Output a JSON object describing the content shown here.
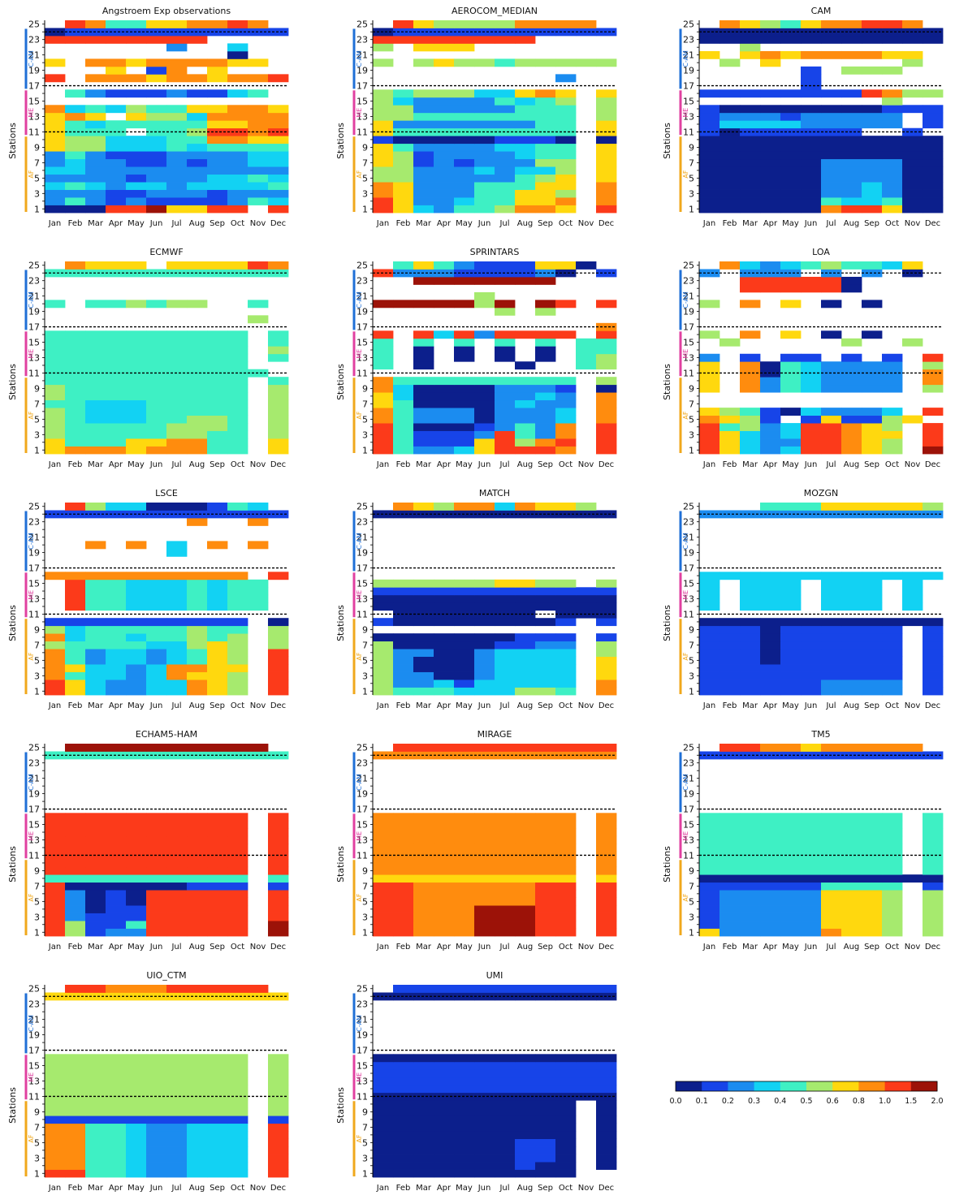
{
  "palette": [
    "#0c1f8c",
    "#1744e8",
    "#1b8cf0",
    "#12d2f3",
    "#3ef0c4",
    "#a6ea6e",
    "#ffd80e",
    "#ff8c0e",
    "#fc3a1a",
    "#9c1208"
  ],
  "months": [
    "Jan",
    "Feb",
    "Mar",
    "Apr",
    "May",
    "Jun",
    "Jul",
    "Aug",
    "Sep",
    "Oct",
    "Nov",
    "Dec"
  ],
  "stations_label": "Stations",
  "region_labels": [
    "C-AM",
    "ME",
    "AF"
  ],
  "region_colors": [
    "#1f6fd6",
    "#e040a0",
    "#f0a81c"
  ],
  "colorbar": {
    "ticks": [
      "0.0",
      "0.1",
      "0.2",
      "0.3",
      "0.4",
      "0.5",
      "0.6",
      "0.8",
      "1.0",
      "1.5",
      "2.0"
    ]
  },
  "chart_data": [
    {
      "type": "heatmap",
      "title": "Angstroem Exp observations",
      "y_ticks": [
        1,
        3,
        5,
        7,
        9,
        11,
        13,
        15,
        17,
        19,
        21,
        23,
        25
      ],
      "x": [
        "Jan",
        "Feb",
        "Mar",
        "Apr",
        "May",
        "Jun",
        "Jul",
        "Aug",
        "Sep",
        "Oct",
        "Nov",
        "Dec"
      ],
      "rows": [
        "0008896688-8",
        "2421211112433",
        "2221122212222",
        "3432332333342",
        "2222122233433",
        "3322222222222",
        "2322112122332",
        "2421112222332",
        "6553334344443",
        "6553334477665",
        "6444-44588788",
        "6434444466777",
        "676-6553777766",
        "7343544667767",
        "-------------",
        "-4211121134-",
        "---------------",
        "8-7776776778",
        "---6-17-6---",
        "6-776777766-7",
        "---------0----",
        "------2--3----",
        "88888888-----",
        "0111111111111",
        "-8744667787-"
      ]
    },
    {
      "type": "heatmap",
      "title": "AEROCOM_MEDIAN",
      "y_ticks": [
        1,
        3,
        5,
        7,
        9,
        11,
        13,
        15,
        17,
        19,
        21,
        23,
        25
      ],
      "x": [
        "Jan",
        "Feb",
        "Mar",
        "Apr",
        "May",
        "Jun",
        "Jul",
        "Aug",
        "Sep",
        "Oct",
        "Nov",
        "Dec"
      ],
      "rows": [
        "8632445776-8",
        "8622344667-7",
        "7622244665-7",
        "7622244466-7",
        "5522222456-6",
        "5522232335-6",
        "6512122255-6",
        "6512222344-6",
        "6422223344-6",
        "1000001110-0",
        "6444444444-6",
        "6222222244-6",
        "5544444444-5",
        "5522222444-5",
        "5322224345-5",
        "5455533676-6",
        "---------------",
        "---------2-----",
        "---------------",
        "5-5655455555",
        "---------------",
        "5-666---------",
        "88888888-----",
        "0111111111111",
        "-8655557777--"
      ]
    },
    {
      "type": "heatmap",
      "title": "CAM",
      "y_ticks": [
        1,
        3,
        5,
        7,
        9,
        11,
        13,
        15,
        17,
        19,
        21,
        23,
        25
      ],
      "x": [
        "Jan",
        "Feb",
        "Mar",
        "Apr",
        "May",
        "Jun",
        "Jul",
        "Aug",
        "Sep",
        "Oct",
        "Nov",
        "Dec"
      ],
      "rows": [
        "000000788600",
        "000000433400",
        "000000223200",
        "000000223200",
        "000000222200",
        "000000222200",
        "000000222200",
        "000000000000",
        "000000000000",
        "000000000000",
        "10111111--1-",
        "1333322222-1",
        "1222122222-1",
        "1000000001112",
        "---------5---",
        "1111111187555",
        "-----1---------",
        "-----1---------",
        "-----1-555----",
        "-5-6------5--",
        "6-676777766-6",
        "--5---------",
        "0000000000000",
        "0000000000000",
        "-7654677887--"
      ]
    },
    {
      "type": "heatmap",
      "title": "ECMWF",
      "y_ticks": [
        1,
        3,
        5,
        7,
        9,
        11,
        13,
        15,
        17,
        19,
        21,
        23,
        25
      ],
      "x": [
        "Jan",
        "Feb",
        "Mar",
        "Apr",
        "May",
        "Jun",
        "Jul",
        "Aug",
        "Sep",
        "Oct",
        "Nov",
        "Dec"
      ],
      "rows": [
        "6777677744-6",
        "6444667744-6",
        "5444445544-5",
        "5444445554-5",
        "5433344554-5",
        "5433344444-5",
        "4433344444-5",
        "5444444444-5",
        "5444444444-5",
        "4444444444-4",
        "44444444444-",
        "4444444444--",
        "4444444444-4",
        "4444444444-5",
        "4444444444-4",
        "4444444444-4",
        "---------------",
        "----------5----",
        "---------------",
        "4-445455--4",
        "-------------",
        "----------------",
        "--------------",
        "444444444444",
        "-7666-6666877"
      ]
    },
    {
      "type": "heatmap",
      "title": "SPRINTARS",
      "y_ticks": [
        1,
        3,
        5,
        7,
        9,
        11,
        13,
        15,
        17,
        19,
        21,
        23,
        25
      ],
      "x": [
        "Jan",
        "Feb",
        "Mar",
        "Apr",
        "May",
        "Jun",
        "Jul",
        "Aug",
        "Sep",
        "Oct",
        "Nov",
        "Dec"
      ],
      "rows": [
        "8422368887-8",
        "8411168578-8",
        "8411128427-8",
        "8400012427-8",
        "7422202223-7",
        "7422202223-7",
        "6400002322-7",
        "6300002232-7",
        "7300002221-0",
        "7444444444-5",
        "----------",
        "4-0----0--45",
        "4-0-0-0-0-45",
        "4-0-0-0-0-44",
        "4-4-4-4-4-44",
        "8-83828888-8",
        "-----------7---",
        "----------------",
        "------5-5------",
        "9999959-98-88",
        "-----5--------",
        "--------------",
        "--9999999-----",
        "8222111120-1",
        "-4642111660-"
      ]
    },
    {
      "type": "heatmap",
      "title": "LOA",
      "y_ticks": [
        1,
        3,
        5,
        7,
        9,
        11,
        13,
        15,
        17,
        19,
        21,
        23,
        25
      ],
      "x": [
        "Jan",
        "Feb",
        "Mar",
        "Apr",
        "May",
        "Jun",
        "Jul",
        "Aug",
        "Sep",
        "Oct",
        "Nov",
        "Dec"
      ],
      "rows": [
        "8632388765-9",
        "8632288765-8",
        "8632388766-8",
        "8452388765-8",
        "7651-161156-7",
        "6541032223-8",
        "-----------",
        "--------------",
        "6-72432222-5",
        "6-72432222-7",
        "6-70432222-7",
        "6-70432222-5",
        "2-1-11-1-1-8",
        "----------",
        "-5-----5--5-",
        "5-7-6-0-0-----",
        "----------------",
        "----------------",
        "---------------",
        "5-7-6-0-0------",
        "--------------",
        "--888880--------",
        "--888880--------",
        "2-222-2-2-0-2",
        "-7323454436-"
      ]
    },
    {
      "type": "heatmap",
      "title": "LSCE",
      "y_ticks": [
        1,
        3,
        5,
        7,
        9,
        11,
        13,
        15,
        17,
        19,
        21,
        23,
        25
      ],
      "x": [
        "Jan",
        "Feb",
        "Mar",
        "Apr",
        "May",
        "Jun",
        "Jul",
        "Aug",
        "Sep",
        "Oct",
        "Nov",
        "Dec"
      ],
      "rows": [
        "8632233765-8",
        "8632233765-8",
        "7433237665-8",
        "7633237766-8",
        "7423323465-8",
        "7423323465-8",
        "5444433565-5",
        "7344344545-5",
        "5344444544-5",
        "1111111111-0",
        "----------",
        "-8443334344-8",
        "-8443334344-8",
        "-8443334344-8",
        "-8443334344-8",
        "7777777777-8",
        "---------------",
        "---------------",
        "------3---------",
        "--7-7-3-7-7-7",
        "----------------",
        "----------------",
        "-------7--7-----",
        "1111111111111",
        "-8533000143-8"
      ]
    },
    {
      "type": "heatmap",
      "title": "MATCH",
      "y_ticks": [
        1,
        3,
        5,
        7,
        9,
        11,
        13,
        15,
        17,
        19,
        21,
        23,
        25
      ],
      "x": [
        "Jan",
        "Feb",
        "Mar",
        "Apr",
        "May",
        "Jun",
        "Jul",
        "Aug",
        "Sep",
        "Oct",
        "Nov",
        "Dec"
      ],
      "rows": [
        "5444333554-7",
        "5223133333-7",
        "5220023333-6",
        "5200023333-6",
        "5200023333-6",
        "5220023333-5",
        "5000001122-5",
        "0000000111-1",
        "----------",
        "1000000001-1",
        "-0000000-000",
        "0000000000000",
        "0000000000000",
        "1111111111111",
        "5555556655-5",
        "-------------",
        "---------------",
        "----------------",
        "---------------",
        "-------------",
        "---------------",
        "---------------",
        "---------------",
        "0000000000000",
        "-7657737665-"
      ]
    },
    {
      "type": "heatmap",
      "title": "MOZGN",
      "y_ticks": [
        1,
        3,
        5,
        7,
        9,
        11,
        13,
        15,
        17,
        19,
        21,
        23,
        25
      ],
      "x": [
        "Jan",
        "Feb",
        "Mar",
        "Apr",
        "May",
        "Jun",
        "Jul",
        "Aug",
        "Sep",
        "Oct",
        "Nov",
        "Dec"
      ],
      "rows": [
        "1111112222-1",
        "1111112222-1",
        "1111111111-1",
        "1111111111-1",
        "1110111111-1",
        "1110111111-1",
        "1110111111-1",
        "1110111111-1",
        "1110111111-1",
        "0000000000000",
        "----------",
        "3-333-333-3-",
        "3-333-333-3-",
        "3-333-333-3-",
        "3-333-333-3-",
        "3333333333333",
        "-------------",
        "----------------",
        "---------------",
        "--------------",
        "---------------",
        "---------------",
        "---------------",
        "2222222222222",
        "---444666665--"
      ]
    },
    {
      "type": "heatmap",
      "title": "ECHAM5-HAM",
      "y_ticks": [
        1,
        3,
        5,
        7,
        9,
        11,
        13,
        15,
        17,
        19,
        21,
        23,
        25
      ],
      "x": [
        "Jan",
        "Feb",
        "Mar",
        "Apr",
        "May",
        "Jun",
        "Jul",
        "Aug",
        "Sep",
        "Oct",
        "Nov",
        "Dec"
      ],
      "rows": [
        "8512288888-9",
        "8511488888-9",
        "8211188888-8",
        "8201188888-8",
        "8201088888-8",
        "8201088888-8",
        "8000000111-1",
        "4444444444-4",
        "8888888888-8",
        "8888888888-8",
        "8888888888-8",
        "8888888888-8",
        "8888888888-8",
        "8888888888-8",
        "8888888888-8",
        "8888888888-8",
        "---------------",
        "---------------",
        "---------------",
        "---------------",
        "--------------",
        "---------------",
        "---------------",
        "4444444444444",
        "-9999999999-"
      ]
    },
    {
      "type": "heatmap",
      "title": "MIRAGE",
      "y_ticks": [
        1,
        3,
        5,
        7,
        9,
        11,
        13,
        15,
        17,
        19,
        21,
        23,
        25
      ],
      "x": [
        "Jan",
        "Feb",
        "Mar",
        "Apr",
        "May",
        "Jun",
        "Jul",
        "Aug",
        "Sep",
        "Oct",
        "Nov",
        "Dec"
      ],
      "rows": [
        "8877799988-8",
        "8877799988-8",
        "8877799988-8",
        "8877799988-8",
        "8877777788-8",
        "8877777788-8",
        "8877777788-8",
        "6666666666-6",
        "7777777777-7",
        "7777777777-7",
        "7777777777-7",
        "7777777777-7",
        "7777777777-7",
        "7777777777-7",
        "7777777777-7",
        "7777777777-7",
        "---------------",
        "---------------",
        "---------------",
        "---------------",
        "--------------",
        "---------------",
        "---------------",
        "7777777777777",
        "-88888888888-"
      ]
    },
    {
      "type": "heatmap",
      "title": "TM5",
      "y_ticks": [
        1,
        3,
        5,
        7,
        9,
        11,
        13,
        15,
        17,
        19,
        21,
        23,
        25
      ],
      "x": [
        "Jan",
        "Feb",
        "Mar",
        "Apr",
        "May",
        "Jun",
        "Jul",
        "Aug",
        "Sep",
        "Oct",
        "Nov",
        "Dec"
      ],
      "rows": [
        "6222227665-5",
        "1222226665-5",
        "1222226665-5",
        "1222226665-5",
        "1222226665-5",
        "1222226665-5",
        "1111114444-1",
        "0000000000000",
        "4444444444-4",
        "4444444444-4",
        "4444444444-4",
        "4444444444-4",
        "4444444444-4",
        "4444444444-4",
        "4444444444-4",
        "4444444444-4",
        "---------------",
        "---------------",
        "---------------",
        "---------------",
        "--------------",
        "---------------",
        "---------------",
        "1111111111111",
        "-8877677777-"
      ]
    },
    {
      "type": "heatmap",
      "title": "UIO_CTM",
      "y_ticks": [
        1,
        3,
        5,
        7,
        9,
        11,
        13,
        15,
        17,
        19,
        21,
        23,
        25
      ],
      "x": [
        "Jan",
        "Feb",
        "Mar",
        "Apr",
        "May",
        "Jun",
        "Jul",
        "Aug",
        "Sep",
        "Oct",
        "Nov",
        "Dec"
      ],
      "rows": [
        "8844322333-8",
        "7744322333-8",
        "7744322333-8",
        "7744322333-8",
        "7744322333-8",
        "7744322333-8",
        "7744322333-8",
        "1111111111-1",
        "5555555555-5",
        "5555555555-5",
        "5555555555-5",
        "5555555555-5",
        "5555555555-5",
        "5555555555-5",
        "5555555555-5",
        "5555555555-5",
        "---------------",
        "---------------",
        "---------------",
        "---------------",
        "--------------",
        "---------------",
        "---------------",
        "6666666666666",
        "-8877788888-"
      ]
    },
    {
      "type": "heatmap",
      "title": "UMI",
      "y_ticks": [
        1,
        3,
        5,
        7,
        9,
        11,
        13,
        15,
        17,
        19,
        21,
        23,
        25
      ],
      "x": [
        "Jan",
        "Feb",
        "Mar",
        "Apr",
        "May",
        "Jun",
        "Jul",
        "Aug",
        "Sep",
        "Oct",
        "Nov",
        "Dec"
      ],
      "rows": [
        "0000000000--",
        "0000000100-0",
        "0000000110-0",
        "0000000110-0",
        "0000000110-0",
        "0000000000-0",
        "0000000000-0",
        "0000000000-0",
        "0000000000-0",
        "0000000000-0",
        "0000000000000",
        "1111111111111",
        "1111111111111",
        "1111111111111",
        "1111111111111",
        "0000000000000",
        "---------------",
        "---------------",
        "---------------",
        "---------------",
        "--------------",
        "---------------",
        "---------------",
        "0000000000000",
        "-11111111111-"
      ]
    }
  ]
}
